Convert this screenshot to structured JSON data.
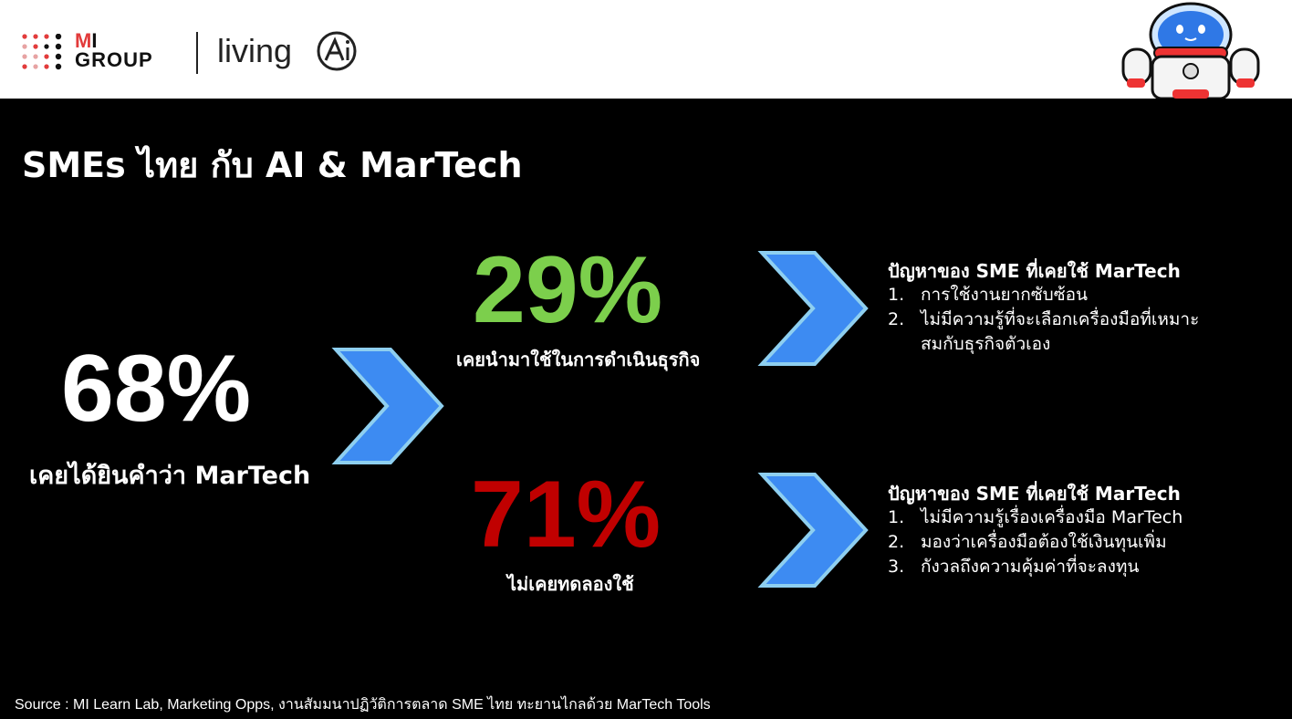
{
  "brand": {
    "mi_line1_prefix": "M",
    "mi_line1_suffix": "I",
    "mi_line2": "GROUP",
    "living_text": "living"
  },
  "slide": {
    "title": "SMEs ไทย กับ AI & MarTech"
  },
  "stats": {
    "heard": {
      "value": "68%",
      "caption": "เคยได้ยินคำว่า MarTech"
    },
    "used": {
      "value": "29%",
      "caption": "เคยนำมาใช้ในการดำเนินธุรกิจ"
    },
    "never": {
      "value": "71%",
      "caption": "ไม่เคยทดลองใช้"
    }
  },
  "panels": {
    "top": {
      "heading": "ปัญหาของ SME ที่เคยใช้ MarTech",
      "items": [
        {
          "num": "1.",
          "text": "การใช้งานยากซับซ้อน"
        },
        {
          "num": "2.",
          "text": "ไม่มีความรู้ที่จะเลือกเครื่องมือที่เหมาะสมกับธุรกิจตัวเอง"
        }
      ]
    },
    "bottom": {
      "heading": "ปัญหาของ SME ที่เคยใช้ MarTech",
      "items": [
        {
          "num": "1.",
          "text": "ไม่มีความรู้เรื่องเครื่องมือ MarTech"
        },
        {
          "num": "2.",
          "text": "มองว่าเครื่องมือต้องใช้เงินทุนเพิ่ม"
        },
        {
          "num": "3.",
          "text": "กังวลถึงความคุ้มค่าที่จะลงทุน"
        }
      ]
    }
  },
  "source": "Source : MI Learn Lab, Marketing Opps, งานสัมมนาปฏิวัติการตลาด SME ไทย ทะยานไกลด้วย MarTech Tools",
  "colors": {
    "green": "#7ccf4c",
    "red": "#c00000",
    "chevron_fill": "#3d8bf2",
    "chevron_stroke": "#8ecff0",
    "brand_red": "#e23b3b"
  },
  "icons": [
    "mi-group-dots-logo",
    "living-ai-logo",
    "robot-mascot",
    "chevron-right-icon"
  ]
}
